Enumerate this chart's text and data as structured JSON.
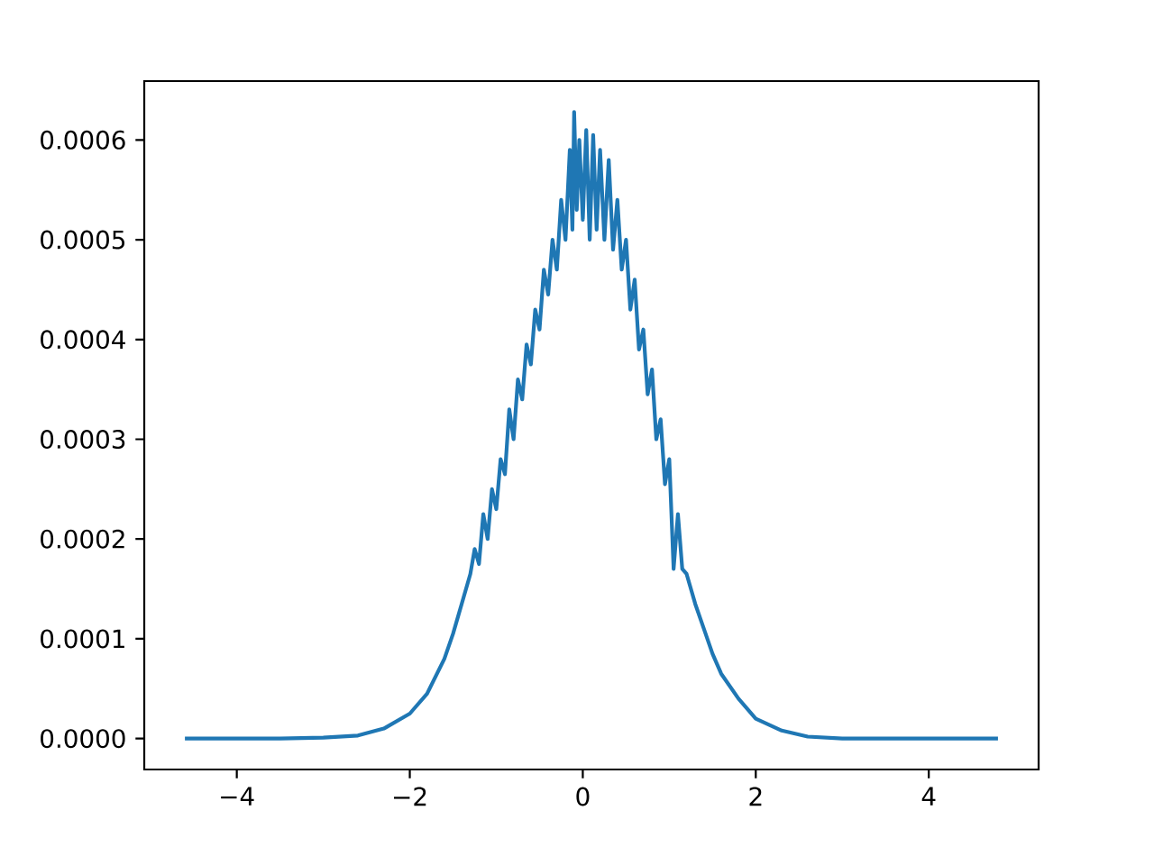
{
  "chart_data": {
    "type": "line",
    "color": "#1f77b4",
    "x": [
      -4.6,
      -4.0,
      -3.5,
      -3.0,
      -2.6,
      -2.3,
      -2.0,
      -1.8,
      -1.6,
      -1.5,
      -1.4,
      -1.3,
      -1.25,
      -1.2,
      -1.15,
      -1.1,
      -1.05,
      -1.0,
      -0.95,
      -0.9,
      -0.85,
      -0.8,
      -0.75,
      -0.7,
      -0.65,
      -0.6,
      -0.55,
      -0.5,
      -0.45,
      -0.4,
      -0.35,
      -0.3,
      -0.25,
      -0.2,
      -0.15,
      -0.12,
      -0.1,
      -0.07,
      -0.04,
      0.0,
      0.04,
      0.08,
      0.12,
      0.16,
      0.2,
      0.25,
      0.3,
      0.35,
      0.4,
      0.45,
      0.5,
      0.55,
      0.6,
      0.65,
      0.7,
      0.75,
      0.8,
      0.85,
      0.9,
      0.95,
      1.0,
      1.05,
      1.1,
      1.15,
      1.2,
      1.3,
      1.4,
      1.5,
      1.6,
      1.8,
      2.0,
      2.3,
      2.6,
      3.0,
      3.5,
      4.0,
      4.8
    ],
    "values": [
      0,
      0,
      0,
      1e-06,
      3e-06,
      1e-05,
      2.5e-05,
      4.5e-05,
      8e-05,
      0.000105,
      0.000135,
      0.000165,
      0.00019,
      0.000175,
      0.000225,
      0.0002,
      0.00025,
      0.00023,
      0.00028,
      0.000265,
      0.00033,
      0.0003,
      0.00036,
      0.00034,
      0.000395,
      0.000375,
      0.00043,
      0.00041,
      0.00047,
      0.000445,
      0.0005,
      0.00047,
      0.00054,
      0.0005,
      0.00059,
      0.00051,
      0.000628,
      0.00053,
      0.0006,
      0.00052,
      0.00061,
      0.0005,
      0.000605,
      0.00051,
      0.00059,
      0.0005,
      0.00058,
      0.00049,
      0.00054,
      0.00047,
      0.0005,
      0.00043,
      0.00046,
      0.00039,
      0.00041,
      0.000345,
      0.00037,
      0.0003,
      0.00032,
      0.000255,
      0.00028,
      0.00017,
      0.000225,
      0.00017,
      0.000165,
      0.000135,
      0.00011,
      8.5e-05,
      6.5e-05,
      4e-05,
      2e-05,
      8e-06,
      2e-06,
      0,
      0,
      0,
      0
    ],
    "xlim": [
      -5.07,
      5.27
    ],
    "ylim": [
      -3.1e-05,
      0.000659
    ],
    "xticks": [
      {
        "value": -4,
        "label": "−4"
      },
      {
        "value": -2,
        "label": "−2"
      },
      0,
      2,
      4
    ],
    "yticks": [
      {
        "value": 0,
        "label": "0.0000"
      },
      {
        "value": 0.0001,
        "label": "0.0001"
      },
      {
        "value": 0.0002,
        "label": "0.0002"
      },
      {
        "value": 0.0003,
        "label": "0.0003"
      },
      {
        "value": 0.0004,
        "label": "0.0004"
      },
      {
        "value": 0.0005,
        "label": "0.0005"
      },
      {
        "value": 0.0006,
        "label": "0.0006"
      }
    ]
  }
}
